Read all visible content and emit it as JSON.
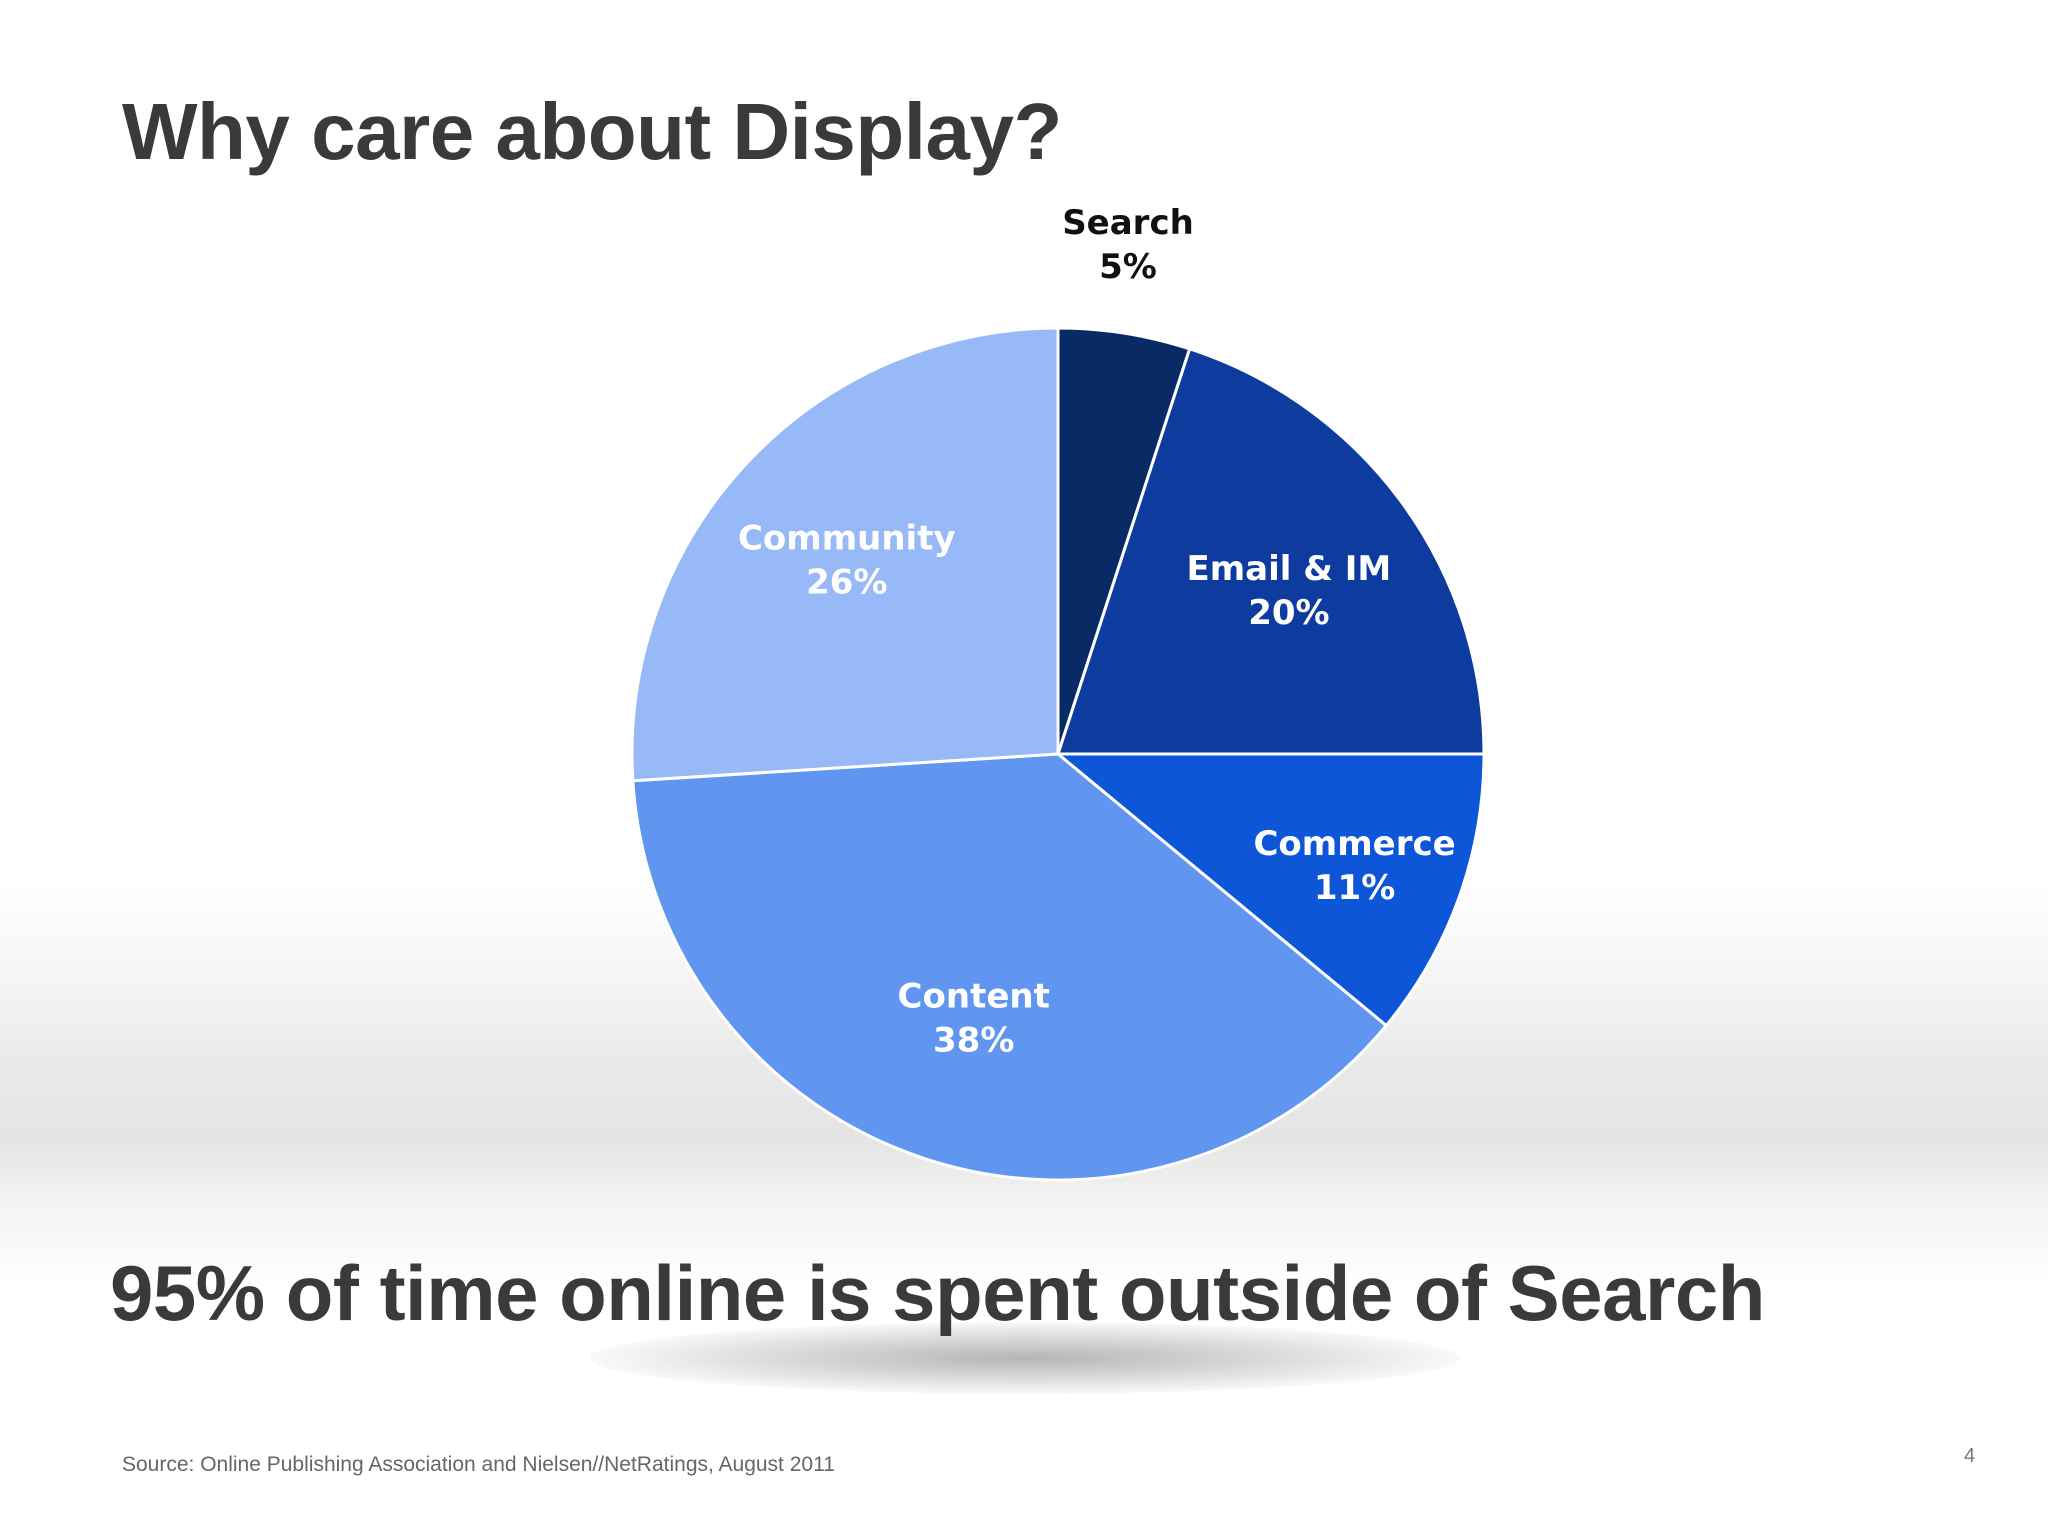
{
  "slide": {
    "title": "Why care about Display?",
    "headline": "95% of time online is spent outside of Search",
    "source": "Source: Online Publishing Association and Nielsen//NetRatings, August 2011",
    "page_number": "4"
  },
  "chart_data": {
    "type": "pie",
    "categories": [
      "Search",
      "Email & IM",
      "Commerce",
      "Content",
      "Community"
    ],
    "values": [
      5,
      20,
      11,
      38,
      26
    ],
    "value_labels": [
      "5%",
      "20%",
      "11%",
      "38%",
      "26%"
    ],
    "colors": [
      "#0a2a66",
      "#0d3c9e",
      "#0d56d8",
      "#6095f0",
      "#97b9f7"
    ],
    "label_colors": [
      "#111111",
      "#ffffff",
      "#ffffff",
      "#ffffff",
      "#ffffff"
    ],
    "start": "12 o'clock",
    "direction": "clockwise",
    "legend": "none"
  }
}
